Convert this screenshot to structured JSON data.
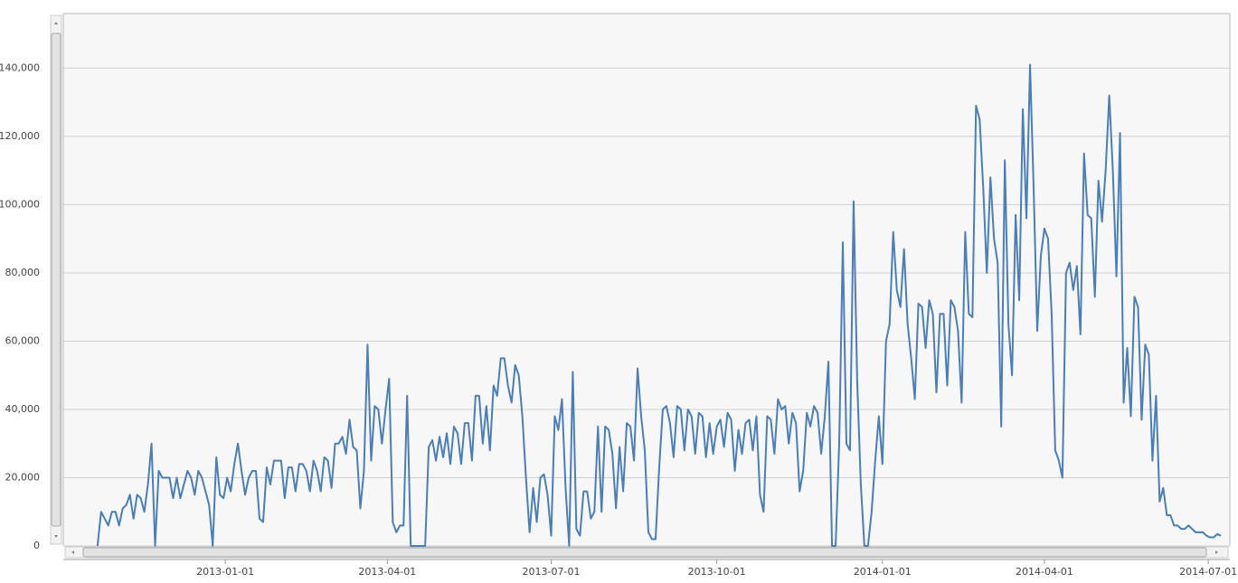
{
  "chart_data": {
    "type": "line",
    "color": "#4a7ebb",
    "grid": true,
    "xlim": [
      "2012-10-03",
      "2014-07-13"
    ],
    "xticks": [
      "2013-01-01",
      "2013-04-01",
      "2013-07-01",
      "2013-10-01",
      "2014-01-01",
      "2014-04-01",
      "2014-07-01"
    ],
    "ylim": [
      0,
      156000
    ],
    "yticks": [
      0,
      {
        "value": 20000,
        "label": "20,000"
      },
      {
        "value": 40000,
        "label": "40,000"
      },
      {
        "value": 60000,
        "label": "60,000"
      },
      {
        "value": 80000,
        "label": "80,000"
      },
      {
        "value": 100000,
        "label": "100,000"
      },
      {
        "value": 120000,
        "label": "120,000"
      },
      {
        "value": 140000,
        "label": "140,000"
      }
    ],
    "x": [
      "2012-10-22",
      "2012-10-24",
      "2012-10-26",
      "2012-10-28",
      "2012-10-30",
      "2012-11-01",
      "2012-11-03",
      "2012-11-05",
      "2012-11-07",
      "2012-11-09",
      "2012-11-11",
      "2012-11-13",
      "2012-11-15",
      "2012-11-17",
      "2012-11-19",
      "2012-11-21",
      "2012-11-23",
      "2012-11-25",
      "2012-11-27",
      "2012-11-29",
      "2012-12-01",
      "2012-12-03",
      "2012-12-05",
      "2012-12-07",
      "2012-12-09",
      "2012-12-11",
      "2012-12-13",
      "2012-12-15",
      "2012-12-17",
      "2012-12-19",
      "2012-12-21",
      "2012-12-23",
      "2012-12-25",
      "2012-12-27",
      "2012-12-29",
      "2012-12-31",
      "2013-01-02",
      "2013-01-04",
      "2013-01-06",
      "2013-01-08",
      "2013-01-10",
      "2013-01-12",
      "2013-01-14",
      "2013-01-16",
      "2013-01-18",
      "2013-01-20",
      "2013-01-22",
      "2013-01-24",
      "2013-01-26",
      "2013-01-28",
      "2013-01-30",
      "2013-02-01",
      "2013-02-03",
      "2013-02-05",
      "2013-02-07",
      "2013-02-09",
      "2013-02-11",
      "2013-02-13",
      "2013-02-15",
      "2013-02-17",
      "2013-02-19",
      "2013-02-21",
      "2013-02-23",
      "2013-02-25",
      "2013-02-27",
      "2013-03-01",
      "2013-03-03",
      "2013-03-05",
      "2013-03-07",
      "2013-03-09",
      "2013-03-11",
      "2013-03-13",
      "2013-03-15",
      "2013-03-17",
      "2013-03-19",
      "2013-03-21",
      "2013-03-23",
      "2013-03-25",
      "2013-03-27",
      "2013-03-29",
      "2013-03-31",
      "2013-04-02",
      "2013-04-04",
      "2013-04-06",
      "2013-04-08",
      "2013-04-10",
      "2013-04-12",
      "2013-04-14",
      "2013-04-16",
      "2013-04-18",
      "2013-04-20",
      "2013-04-22",
      "2013-04-24",
      "2013-04-26",
      "2013-04-28",
      "2013-04-30",
      "2013-05-02",
      "2013-05-04",
      "2013-05-06",
      "2013-05-08",
      "2013-05-10",
      "2013-05-12",
      "2013-05-14",
      "2013-05-16",
      "2013-05-18",
      "2013-05-20",
      "2013-05-22",
      "2013-05-24",
      "2013-05-26",
      "2013-05-28",
      "2013-05-30",
      "2013-06-01",
      "2013-06-03",
      "2013-06-05",
      "2013-06-07",
      "2013-06-09",
      "2013-06-11",
      "2013-06-13",
      "2013-06-15",
      "2013-06-17",
      "2013-06-19",
      "2013-06-21",
      "2013-06-23",
      "2013-06-25",
      "2013-06-27",
      "2013-06-29",
      "2013-07-01",
      "2013-07-03",
      "2013-07-05",
      "2013-07-07",
      "2013-07-09",
      "2013-07-11",
      "2013-07-13",
      "2013-07-15",
      "2013-07-17",
      "2013-07-19",
      "2013-07-21",
      "2013-07-23",
      "2013-07-25",
      "2013-07-27",
      "2013-07-29",
      "2013-07-31",
      "2013-08-02",
      "2013-08-04",
      "2013-08-06",
      "2013-08-08",
      "2013-08-10",
      "2013-08-12",
      "2013-08-14",
      "2013-08-16",
      "2013-08-18",
      "2013-08-20",
      "2013-08-22",
      "2013-08-24",
      "2013-08-26",
      "2013-08-28",
      "2013-08-30",
      "2013-09-01",
      "2013-09-03",
      "2013-09-05",
      "2013-09-07",
      "2013-09-09",
      "2013-09-11",
      "2013-09-13",
      "2013-09-15",
      "2013-09-17",
      "2013-09-19",
      "2013-09-21",
      "2013-09-23",
      "2013-09-25",
      "2013-09-27",
      "2013-09-29",
      "2013-10-01",
      "2013-10-03",
      "2013-10-05",
      "2013-10-07",
      "2013-10-09",
      "2013-10-11",
      "2013-10-13",
      "2013-10-15",
      "2013-10-17",
      "2013-10-19",
      "2013-10-21",
      "2013-10-23",
      "2013-10-25",
      "2013-10-27",
      "2013-10-29",
      "2013-10-31",
      "2013-11-02",
      "2013-11-04",
      "2013-11-06",
      "2013-11-08",
      "2013-11-10",
      "2013-11-12",
      "2013-11-14",
      "2013-11-16",
      "2013-11-18",
      "2013-11-20",
      "2013-11-22",
      "2013-11-24",
      "2013-11-26",
      "2013-11-28",
      "2013-11-30",
      "2013-12-02",
      "2013-12-04",
      "2013-12-06",
      "2013-12-08",
      "2013-12-10",
      "2013-12-12",
      "2013-12-14",
      "2013-12-16",
      "2013-12-18",
      "2013-12-20",
      "2013-12-22",
      "2013-12-24",
      "2013-12-26",
      "2013-12-28",
      "2013-12-30",
      "2014-01-01",
      "2014-01-03",
      "2014-01-05",
      "2014-01-07",
      "2014-01-09",
      "2014-01-11",
      "2014-01-13",
      "2014-01-15",
      "2014-01-17",
      "2014-01-19",
      "2014-01-21",
      "2014-01-23",
      "2014-01-25",
      "2014-01-27",
      "2014-01-29",
      "2014-01-31",
      "2014-02-02",
      "2014-02-04",
      "2014-02-06",
      "2014-02-08",
      "2014-02-10",
      "2014-02-12",
      "2014-02-14",
      "2014-02-16",
      "2014-02-18",
      "2014-02-20",
      "2014-02-22",
      "2014-02-24",
      "2014-02-26",
      "2014-02-28",
      "2014-03-02",
      "2014-03-04",
      "2014-03-06",
      "2014-03-08",
      "2014-03-10",
      "2014-03-12",
      "2014-03-14",
      "2014-03-16",
      "2014-03-18",
      "2014-03-20",
      "2014-03-22",
      "2014-03-24",
      "2014-03-26",
      "2014-03-28",
      "2014-03-30",
      "2014-04-01",
      "2014-04-03",
      "2014-04-05",
      "2014-04-07",
      "2014-04-09",
      "2014-04-11",
      "2014-04-13",
      "2014-04-15",
      "2014-04-17",
      "2014-04-19",
      "2014-04-21",
      "2014-04-23",
      "2014-04-25",
      "2014-04-27",
      "2014-04-29",
      "2014-05-01",
      "2014-05-03",
      "2014-05-05",
      "2014-05-07",
      "2014-05-09",
      "2014-05-11",
      "2014-05-13",
      "2014-05-15",
      "2014-05-17",
      "2014-05-19",
      "2014-05-21",
      "2014-05-23",
      "2014-05-25",
      "2014-05-27",
      "2014-05-29",
      "2014-05-31",
      "2014-06-02",
      "2014-06-04",
      "2014-06-06",
      "2014-06-08",
      "2014-06-10",
      "2014-06-12",
      "2014-06-14",
      "2014-06-16",
      "2014-06-18",
      "2014-06-20",
      "2014-06-22",
      "2014-06-24",
      "2014-06-26",
      "2014-06-28",
      "2014-06-30",
      "2014-07-02",
      "2014-07-04",
      "2014-07-06",
      "2014-07-08"
    ],
    "values": [
      0,
      10000,
      8000,
      6000,
      10000,
      10000,
      6000,
      11000,
      12000,
      15000,
      8000,
      15000,
      14000,
      10000,
      18000,
      30000,
      0,
      22000,
      20000,
      20000,
      20000,
      14000,
      20000,
      14000,
      18000,
      22000,
      20000,
      15000,
      22000,
      20000,
      16000,
      12000,
      0,
      26000,
      15000,
      14000,
      20000,
      16000,
      24000,
      30000,
      22000,
      15000,
      20000,
      22000,
      22000,
      8000,
      7000,
      23000,
      18000,
      25000,
      25000,
      25000,
      14000,
      23000,
      23000,
      16000,
      24000,
      24000,
      22000,
      16000,
      25000,
      22000,
      16000,
      26000,
      25000,
      17000,
      30000,
      30000,
      32000,
      27000,
      37000,
      29000,
      28000,
      11000,
      22000,
      59000,
      25000,
      41000,
      40000,
      30000,
      40000,
      49000,
      7000,
      4000,
      6000,
      6000,
      44000,
      0,
      0,
      0,
      0,
      0,
      29000,
      31000,
      25000,
      32000,
      26000,
      33000,
      24000,
      35000,
      33000,
      24000,
      36000,
      36000,
      25000,
      44000,
      44000,
      30000,
      41000,
      28000,
      47000,
      44000,
      55000,
      55000,
      47000,
      42000,
      53000,
      50000,
      38000,
      20000,
      4000,
      17000,
      7000,
      20000,
      21000,
      15000,
      3000,
      38000,
      34000,
      43000,
      17000,
      0,
      51000,
      5000,
      3000,
      16000,
      16000,
      8000,
      10000,
      35000,
      10000,
      35000,
      34000,
      27000,
      11000,
      29000,
      16000,
      36000,
      35000,
      25000,
      52000,
      38000,
      28000,
      4000,
      2000,
      2000,
      23000,
      40000,
      41000,
      36000,
      26000,
      41000,
      40000,
      28000,
      40000,
      38000,
      27000,
      39000,
      38000,
      26000,
      36000,
      27000,
      35000,
      37000,
      29000,
      39000,
      37000,
      22000,
      34000,
      27000,
      36000,
      37000,
      28000,
      38000,
      15000,
      10000,
      38000,
      37000,
      27000,
      43000,
      40000,
      41000,
      30000,
      39000,
      36000,
      16000,
      22000,
      39000,
      35000,
      41000,
      39000,
      27000,
      38000,
      54000,
      0,
      0,
      30000,
      89000,
      30000,
      28000,
      101000,
      48000,
      18000,
      0,
      0,
      10000,
      25000,
      38000,
      24000,
      60000,
      65000,
      92000,
      75000,
      70000,
      87000,
      65000,
      55000,
      43000,
      71000,
      70000,
      58000,
      72000,
      68000,
      45000,
      68000,
      68000,
      47000,
      72000,
      70000,
      63000,
      42000,
      92000,
      68000,
      67000,
      129000,
      125000,
      105000,
      80000,
      108000,
      90000,
      83000,
      35000,
      113000,
      65000,
      50000,
      97000,
      72000,
      128000,
      96000,
      141000,
      105000,
      63000,
      85000,
      93000,
      90000,
      68000,
      28000,
      25000,
      20000,
      80000,
      83000,
      75000,
      82000,
      62000,
      115000,
      97000,
      96000,
      73000,
      107000,
      95000,
      110000,
      132000,
      110000,
      79000,
      121000,
      42000,
      58000,
      38000,
      73000,
      70000,
      37000,
      59000,
      56000,
      25000,
      44000,
      13000,
      17000,
      9000,
      9000,
      6000,
      6000,
      5000,
      5000,
      6000,
      5000,
      4000,
      4000,
      4000,
      3000,
      2500,
      2500,
      3500,
      3000
    ]
  }
}
